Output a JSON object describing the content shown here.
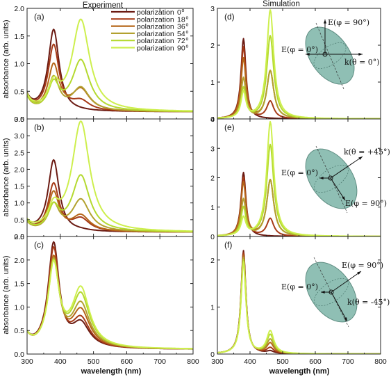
{
  "headers": {
    "left": "Experiment",
    "right": "Simulation"
  },
  "xlabel": "wavelength (nm)",
  "ylabel": "absorbance (arb. units)",
  "colors": [
    "#6b1a12",
    "#a63a17",
    "#b56618",
    "#b2a12f",
    "#b4d92f",
    "#cdef4d"
  ],
  "legend": {
    "entries": [
      {
        "word": "polarization",
        "angle": "0",
        "deg": "o"
      },
      {
        "word": "polarization",
        "angle": "18",
        "deg": "o"
      },
      {
        "word": "polarization",
        "angle": "36",
        "deg": "o"
      },
      {
        "word": "polarization",
        "angle": "54",
        "deg": "o"
      },
      {
        "word": "polarization",
        "angle": "72",
        "deg": "o"
      },
      {
        "word": "polarization",
        "angle": "90",
        "deg": "o"
      }
    ]
  },
  "insets": {
    "d": {
      "phi0": "E(φ = 0°)",
      "phi90": "E(φ = 90°)",
      "k": "k(θ = 0°)"
    },
    "e": {
      "phi0": "E(φ = 0°)",
      "phi90": "E(φ = 90°)",
      "k": "k(θ = +45°)"
    },
    "f": {
      "phi0": "E(φ = 0°)",
      "phi90": "E(φ = 90°)",
      "k": "k(θ = -45°)"
    }
  },
  "chart_data": [
    {
      "panel": "(a)",
      "type": "line",
      "xlim": [
        300,
        800
      ],
      "ylim": [
        0,
        2.0
      ],
      "xticks": [
        300,
        400,
        500,
        600,
        700,
        800
      ],
      "yticks": [
        "0.0",
        "0.5",
        "1.0",
        "1.5",
        "2.0"
      ],
      "series": [
        {
          "polarization": 0,
          "peak1": 1.62,
          "peak2": 0.1,
          "tail": 0.13
        },
        {
          "polarization": 18,
          "peak1": 1.33,
          "peak2": 0.3,
          "tail": 0.13
        },
        {
          "polarization": 36,
          "peak1": 0.96,
          "peak2": 0.52,
          "tail": 0.13
        },
        {
          "polarization": 54,
          "peak1": 0.73,
          "peak2": 0.55,
          "tail": 0.13
        },
        {
          "polarization": 72,
          "peak1": 0.6,
          "peak2": 1.05,
          "tail": 0.13
        },
        {
          "polarization": 90,
          "peak1": 0.55,
          "peak2": 1.78,
          "tail": 0.13
        }
      ]
    },
    {
      "panel": "(b)",
      "type": "line",
      "xlim": [
        300,
        800
      ],
      "ylim": [
        0,
        3.5
      ],
      "xticks": [
        300,
        400,
        500,
        600,
        700,
        800
      ],
      "yticks": [
        "0.0",
        "0.5",
        "1.0",
        "1.5",
        "2.0",
        "2.5",
        "3.0",
        "3.5"
      ],
      "series": [
        {
          "polarization": 0,
          "peak1": 2.28,
          "peak2": 0.15,
          "tail": 0.13
        },
        {
          "polarization": 18,
          "peak1": 1.55,
          "peak2": 0.5,
          "tail": 0.13
        },
        {
          "polarization": 36,
          "peak1": 1.3,
          "peak2": 0.6,
          "tail": 0.13
        },
        {
          "polarization": 54,
          "peak1": 0.9,
          "peak2": 1.08,
          "tail": 0.13
        },
        {
          "polarization": 72,
          "peak1": 0.8,
          "peak2": 1.8,
          "tail": 0.13
        },
        {
          "polarization": 90,
          "peak1": 0.72,
          "peak2": 3.4,
          "tail": 0.13
        }
      ]
    },
    {
      "panel": "(c)",
      "type": "line",
      "xlim": [
        300,
        800
      ],
      "ylim": [
        0,
        2.5
      ],
      "xticks": [
        300,
        400,
        500,
        600,
        700,
        800
      ],
      "yticks": [
        "0.0",
        "0.5",
        "1.0",
        "1.5",
        "2.0",
        "2.5"
      ],
      "series": [
        {
          "polarization": 0,
          "peak1": 2.32,
          "peak2": 0.6,
          "tail": 0.1
        },
        {
          "polarization": 18,
          "peak1": 2.2,
          "peak2": 0.7,
          "tail": 0.1
        },
        {
          "polarization": 36,
          "peak1": 2.0,
          "peak2": 0.88,
          "tail": 0.1
        },
        {
          "polarization": 54,
          "peak1": 1.93,
          "peak2": 1.02,
          "tail": 0.1
        },
        {
          "polarization": 72,
          "peak1": 1.87,
          "peak2": 1.22,
          "tail": 0.1
        },
        {
          "polarization": 90,
          "peak1": 1.83,
          "peak2": 1.35,
          "tail": 0.1
        }
      ]
    },
    {
      "panel": "(d)",
      "type": "line",
      "xlim": [
        300,
        800
      ],
      "ylim": [
        0,
        3
      ],
      "xticks": [
        300,
        400,
        500,
        600,
        700,
        800
      ],
      "yticks": [
        "0",
        "1",
        "2",
        "3"
      ],
      "series": [
        {
          "polarization": 0,
          "peak1": 2.18,
          "peak2": 0.0,
          "tail": 0.0
        },
        {
          "polarization": 18,
          "peak1": 1.95,
          "peak2": 0.47,
          "tail": 0.0
        },
        {
          "polarization": 36,
          "peak1": 1.63,
          "peak2": 1.3,
          "tail": 0.0
        },
        {
          "polarization": 54,
          "peak1": 1.1,
          "peak2": 1.3,
          "tail": 0.0
        },
        {
          "polarization": 72,
          "peak1": 0.82,
          "peak2": 2.25,
          "tail": 0.0
        },
        {
          "polarization": 90,
          "peak1": 0.7,
          "peak2": 2.95,
          "tail": 0.0
        }
      ]
    },
    {
      "panel": "(e)",
      "type": "line",
      "xlim": [
        300,
        800
      ],
      "ylim": [
        0,
        4
      ],
      "xticks": [
        300,
        400,
        500,
        600,
        700,
        800
      ],
      "yticks": [
        "0",
        "1",
        "2",
        "3",
        "4"
      ],
      "series": [
        {
          "polarization": 0,
          "peak1": 2.18,
          "peak2": 0.0,
          "tail": 0.0
        },
        {
          "polarization": 18,
          "peak1": 2.0,
          "peak2": 0.6,
          "tail": 0.0
        },
        {
          "polarization": 36,
          "peak1": 1.82,
          "peak2": 1.92,
          "tail": 0.0
        },
        {
          "polarization": 54,
          "peak1": 1.25,
          "peak2": 1.92,
          "tail": 0.0
        },
        {
          "polarization": 72,
          "peak1": 0.95,
          "peak2": 3.12,
          "tail": 0.0
        },
        {
          "polarization": 90,
          "peak1": 0.6,
          "peak2": 3.9,
          "tail": 0.0
        }
      ]
    },
    {
      "panel": "(f)",
      "type": "line",
      "xlim": [
        300,
        800
      ],
      "ylim": [
        0,
        2.5
      ],
      "xticks": [
        300,
        400,
        500,
        600,
        700,
        800
      ],
      "yticks": [
        "0",
        "1",
        "2"
      ],
      "series": [
        {
          "polarization": 0,
          "peak1": 2.2,
          "peak2": 0.05,
          "tail": 0.0
        },
        {
          "polarization": 18,
          "peak1": 2.15,
          "peak2": 0.12,
          "tail": 0.0
        },
        {
          "polarization": 36,
          "peak1": 2.1,
          "peak2": 0.22,
          "tail": 0.0
        },
        {
          "polarization": 54,
          "peak1": 2.05,
          "peak2": 0.3,
          "tail": 0.0
        },
        {
          "polarization": 72,
          "peak1": 2.0,
          "peak2": 0.4,
          "tail": 0.0
        },
        {
          "polarization": 90,
          "peak1": 1.95,
          "peak2": 0.48,
          "tail": 0.0
        }
      ]
    }
  ]
}
